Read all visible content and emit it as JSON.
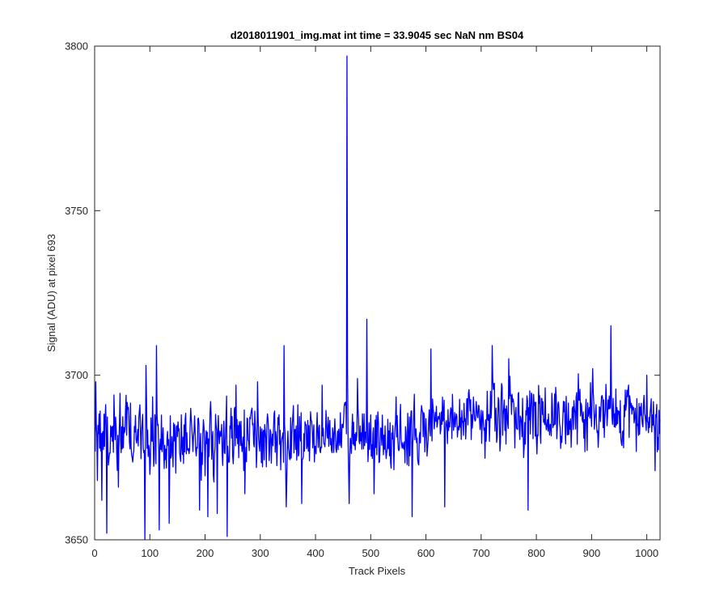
{
  "chart_data": {
    "type": "line",
    "title": "d2018011901_img.mat int time = 33.9045 sec  NaN nm BS04",
    "xlabel": "Track Pixels",
    "ylabel": "Signal (ADU) at pixel 693",
    "xlim": [
      0,
      1024
    ],
    "ylim": [
      3650,
      3800
    ],
    "xticks": [
      0,
      100,
      200,
      300,
      400,
      500,
      600,
      700,
      800,
      900,
      1000
    ],
    "yticks": [
      3650,
      3700,
      3750,
      3800
    ],
    "grid": false,
    "legend": "none",
    "series": [
      {
        "color": "#0000ff",
        "x_start": 1,
        "x_step": 1,
        "baseline": 3681,
        "noise_amplitude": 9,
        "seed": 693,
        "features": [
          {
            "x": 2,
            "y": 3698
          },
          {
            "x": 5,
            "y": 3668
          },
          {
            "x": 13,
            "y": 3662
          },
          {
            "x": 22,
            "y": 3652
          },
          {
            "x": 35,
            "y": 3694
          },
          {
            "x": 43,
            "y": 3666
          },
          {
            "x": 88,
            "y": 3678
          },
          {
            "x": 91,
            "y": 3650
          },
          {
            "x": 93,
            "y": 3703
          },
          {
            "x": 112,
            "y": 3709
          },
          {
            "x": 117,
            "y": 3653
          },
          {
            "x": 135,
            "y": 3655
          },
          {
            "x": 190,
            "y": 3659
          },
          {
            "x": 205,
            "y": 3657
          },
          {
            "x": 222,
            "y": 3658
          },
          {
            "x": 240,
            "y": 3651
          },
          {
            "x": 256,
            "y": 3697
          },
          {
            "x": 272,
            "y": 3664
          },
          {
            "x": 295,
            "y": 3698
          },
          {
            "x": 343,
            "y": 3709
          },
          {
            "x": 347,
            "y": 3660
          },
          {
            "x": 375,
            "y": 3661
          },
          {
            "x": 412,
            "y": 3697
          },
          {
            "x": 457,
            "y": 3797
          },
          {
            "x": 459,
            "y": 3680
          },
          {
            "x": 461,
            "y": 3661
          },
          {
            "x": 476,
            "y": 3699
          },
          {
            "x": 493,
            "y": 3717
          },
          {
            "x": 506,
            "y": 3664
          },
          {
            "x": 575,
            "y": 3657
          },
          {
            "x": 609,
            "y": 3708
          },
          {
            "x": 634,
            "y": 3660
          },
          {
            "x": 720,
            "y": 3709
          },
          {
            "x": 785,
            "y": 3659
          },
          {
            "x": 750,
            "y": 3705
          },
          {
            "x": 902,
            "y": 3702
          },
          {
            "x": 935,
            "y": 3715
          },
          {
            "x": 1000,
            "y": 3700
          },
          {
            "x": 1015,
            "y": 3671
          }
        ],
        "n_points": 1024
      }
    ]
  }
}
